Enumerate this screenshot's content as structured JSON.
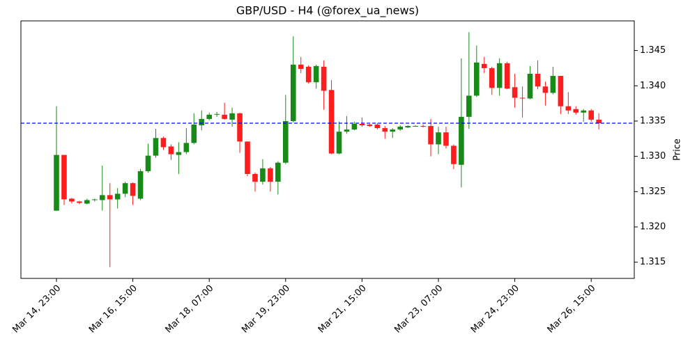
{
  "chart_data": {
    "type": "candlestick",
    "title": "GBP/USD - H4 (@forex_ua_news)",
    "y_label": "Price",
    "categories": [
      "Mar 14, 23:00",
      null,
      null,
      null,
      null,
      null,
      null,
      null,
      null,
      null,
      "Mar 16, 15:00",
      null,
      null,
      null,
      null,
      null,
      null,
      null,
      null,
      null,
      "Mar 18, 07:00",
      null,
      null,
      null,
      null,
      null,
      null,
      null,
      null,
      null,
      "Mar 19, 23:00",
      null,
      null,
      null,
      null,
      null,
      null,
      null,
      null,
      null,
      "Mar 21, 15:00",
      null,
      null,
      null,
      null,
      null,
      null,
      null,
      null,
      null,
      "Mar 23, 07:00",
      null,
      null,
      null,
      null,
      null,
      null,
      null,
      null,
      null,
      "Mar 24, 23:00",
      null,
      null,
      null,
      null,
      null,
      null,
      null,
      null,
      null,
      "Mar 26, 15:00",
      null
    ],
    "open": [
      1.3223,
      1.3302,
      1.324,
      1.3236,
      1.3233,
      1.3238,
      1.3238,
      1.3245,
      1.3239,
      1.3247,
      1.3262,
      1.324,
      1.3279,
      1.3301,
      1.3326,
      1.3314,
      1.3302,
      1.3306,
      1.3319,
      1.3344,
      1.3353,
      1.3359,
      1.3359,
      1.3352,
      1.3361,
      1.3321,
      1.3275,
      1.3264,
      1.3283,
      1.3264,
      1.3291,
      1.335,
      1.343,
      1.3427,
      1.3405,
      1.3427,
      1.3394,
      1.3304,
      1.3335,
      1.3338,
      1.3346,
      1.3345,
      1.3345,
      1.334,
      1.3335,
      1.3338,
      1.3341,
      1.3343,
      1.3343,
      1.3343,
      1.3317,
      1.3334,
      1.3315,
      1.3288,
      1.3356,
      1.3386,
      1.3431,
      1.3425,
      1.3397,
      1.3432,
      1.3398,
      1.3383,
      1.3382,
      1.3417,
      1.3399,
      1.339,
      1.3414,
      1.3371,
      1.3367,
      1.3362,
      1.3365,
      1.3352
    ],
    "high": [
      1.3371,
      1.3302,
      1.3241,
      1.3237,
      1.324,
      1.324,
      1.3287,
      1.3262,
      1.3255,
      1.3264,
      1.3263,
      1.3282,
      1.3318,
      1.3339,
      1.3328,
      1.3317,
      1.332,
      1.334,
      1.3361,
      1.3365,
      1.3362,
      1.3363,
      1.3376,
      1.3369,
      1.3362,
      1.3321,
      1.3277,
      1.3296,
      1.3285,
      1.3293,
      1.3387,
      1.347,
      1.3441,
      1.3429,
      1.343,
      1.3436,
      1.3408,
      1.3349,
      1.3357,
      1.3349,
      1.3355,
      1.3346,
      1.3347,
      1.3343,
      1.334,
      1.3344,
      1.3344,
      1.3344,
      1.3345,
      1.3353,
      1.3342,
      1.3342,
      1.3317,
      1.3439,
      1.3476,
      1.3457,
      1.3441,
      1.3427,
      1.3439,
      1.3434,
      1.3417,
      1.3399,
      1.3428,
      1.3436,
      1.3406,
      1.3427,
      1.3414,
      1.3391,
      1.3371,
      1.3367,
      1.3367,
      1.3361
    ],
    "low": [
      1.3223,
      1.3231,
      1.3233,
      1.3232,
      1.3232,
      1.3236,
      1.3223,
      1.3143,
      1.3226,
      1.3242,
      1.3231,
      1.3238,
      1.3277,
      1.3298,
      1.3309,
      1.3295,
      1.3275,
      1.3303,
      1.3317,
      1.3337,
      1.3351,
      1.3356,
      1.3352,
      1.3342,
      1.3305,
      1.3272,
      1.325,
      1.326,
      1.325,
      1.3246,
      1.3289,
      1.3348,
      1.3418,
      1.3403,
      1.3396,
      1.3366,
      1.3303,
      1.3303,
      1.3332,
      1.3337,
      1.3342,
      1.3342,
      1.3338,
      1.3325,
      1.3326,
      1.3336,
      1.334,
      1.3342,
      1.3341,
      1.33,
      1.3303,
      1.3311,
      1.3282,
      1.3256,
      1.3339,
      1.3384,
      1.3418,
      1.3387,
      1.3386,
      1.3395,
      1.3369,
      1.3355,
      1.3381,
      1.3395,
      1.3372,
      1.3388,
      1.336,
      1.336,
      1.3359,
      1.3349,
      1.3349,
      1.3338
    ],
    "close": [
      1.3302,
      1.3239,
      1.3236,
      1.3234,
      1.3238,
      1.3239,
      1.3245,
      1.3239,
      1.3247,
      1.3262,
      1.3244,
      1.3279,
      1.3301,
      1.3326,
      1.3313,
      1.3303,
      1.3306,
      1.3319,
      1.3345,
      1.3353,
      1.3359,
      1.336,
      1.3353,
      1.3361,
      1.3321,
      1.3275,
      1.3264,
      1.3283,
      1.3264,
      1.3291,
      1.335,
      1.343,
      1.3424,
      1.3405,
      1.3428,
      1.3393,
      1.3304,
      1.3335,
      1.3338,
      1.3346,
      1.3344,
      1.3343,
      1.334,
      1.3335,
      1.3338,
      1.3342,
      1.3343,
      1.3343,
      1.3342,
      1.3317,
      1.3334,
      1.3315,
      1.3289,
      1.3356,
      1.3386,
      1.3433,
      1.3425,
      1.3397,
      1.3432,
      1.3396,
      1.3383,
      1.3382,
      1.3417,
      1.3399,
      1.339,
      1.3414,
      1.3371,
      1.3365,
      1.3362,
      1.3365,
      1.3352,
      1.3347
    ],
    "up_color": "#188a18",
    "down_color": "#ff1c1c",
    "hline": 1.3347,
    "hline_color": "#0000ff",
    "ylim": [
      1.3127,
      1.3492
    ],
    "yticks": [
      1.315,
      {
        "value": 1.32,
        "label": "1.320"
      },
      1.325,
      {
        "value": 1.33,
        "label": "1.330"
      },
      1.335,
      {
        "value": 1.34,
        "label": "1.340"
      },
      1.345
    ],
    "y_axis_side": "right",
    "grid": false
  }
}
